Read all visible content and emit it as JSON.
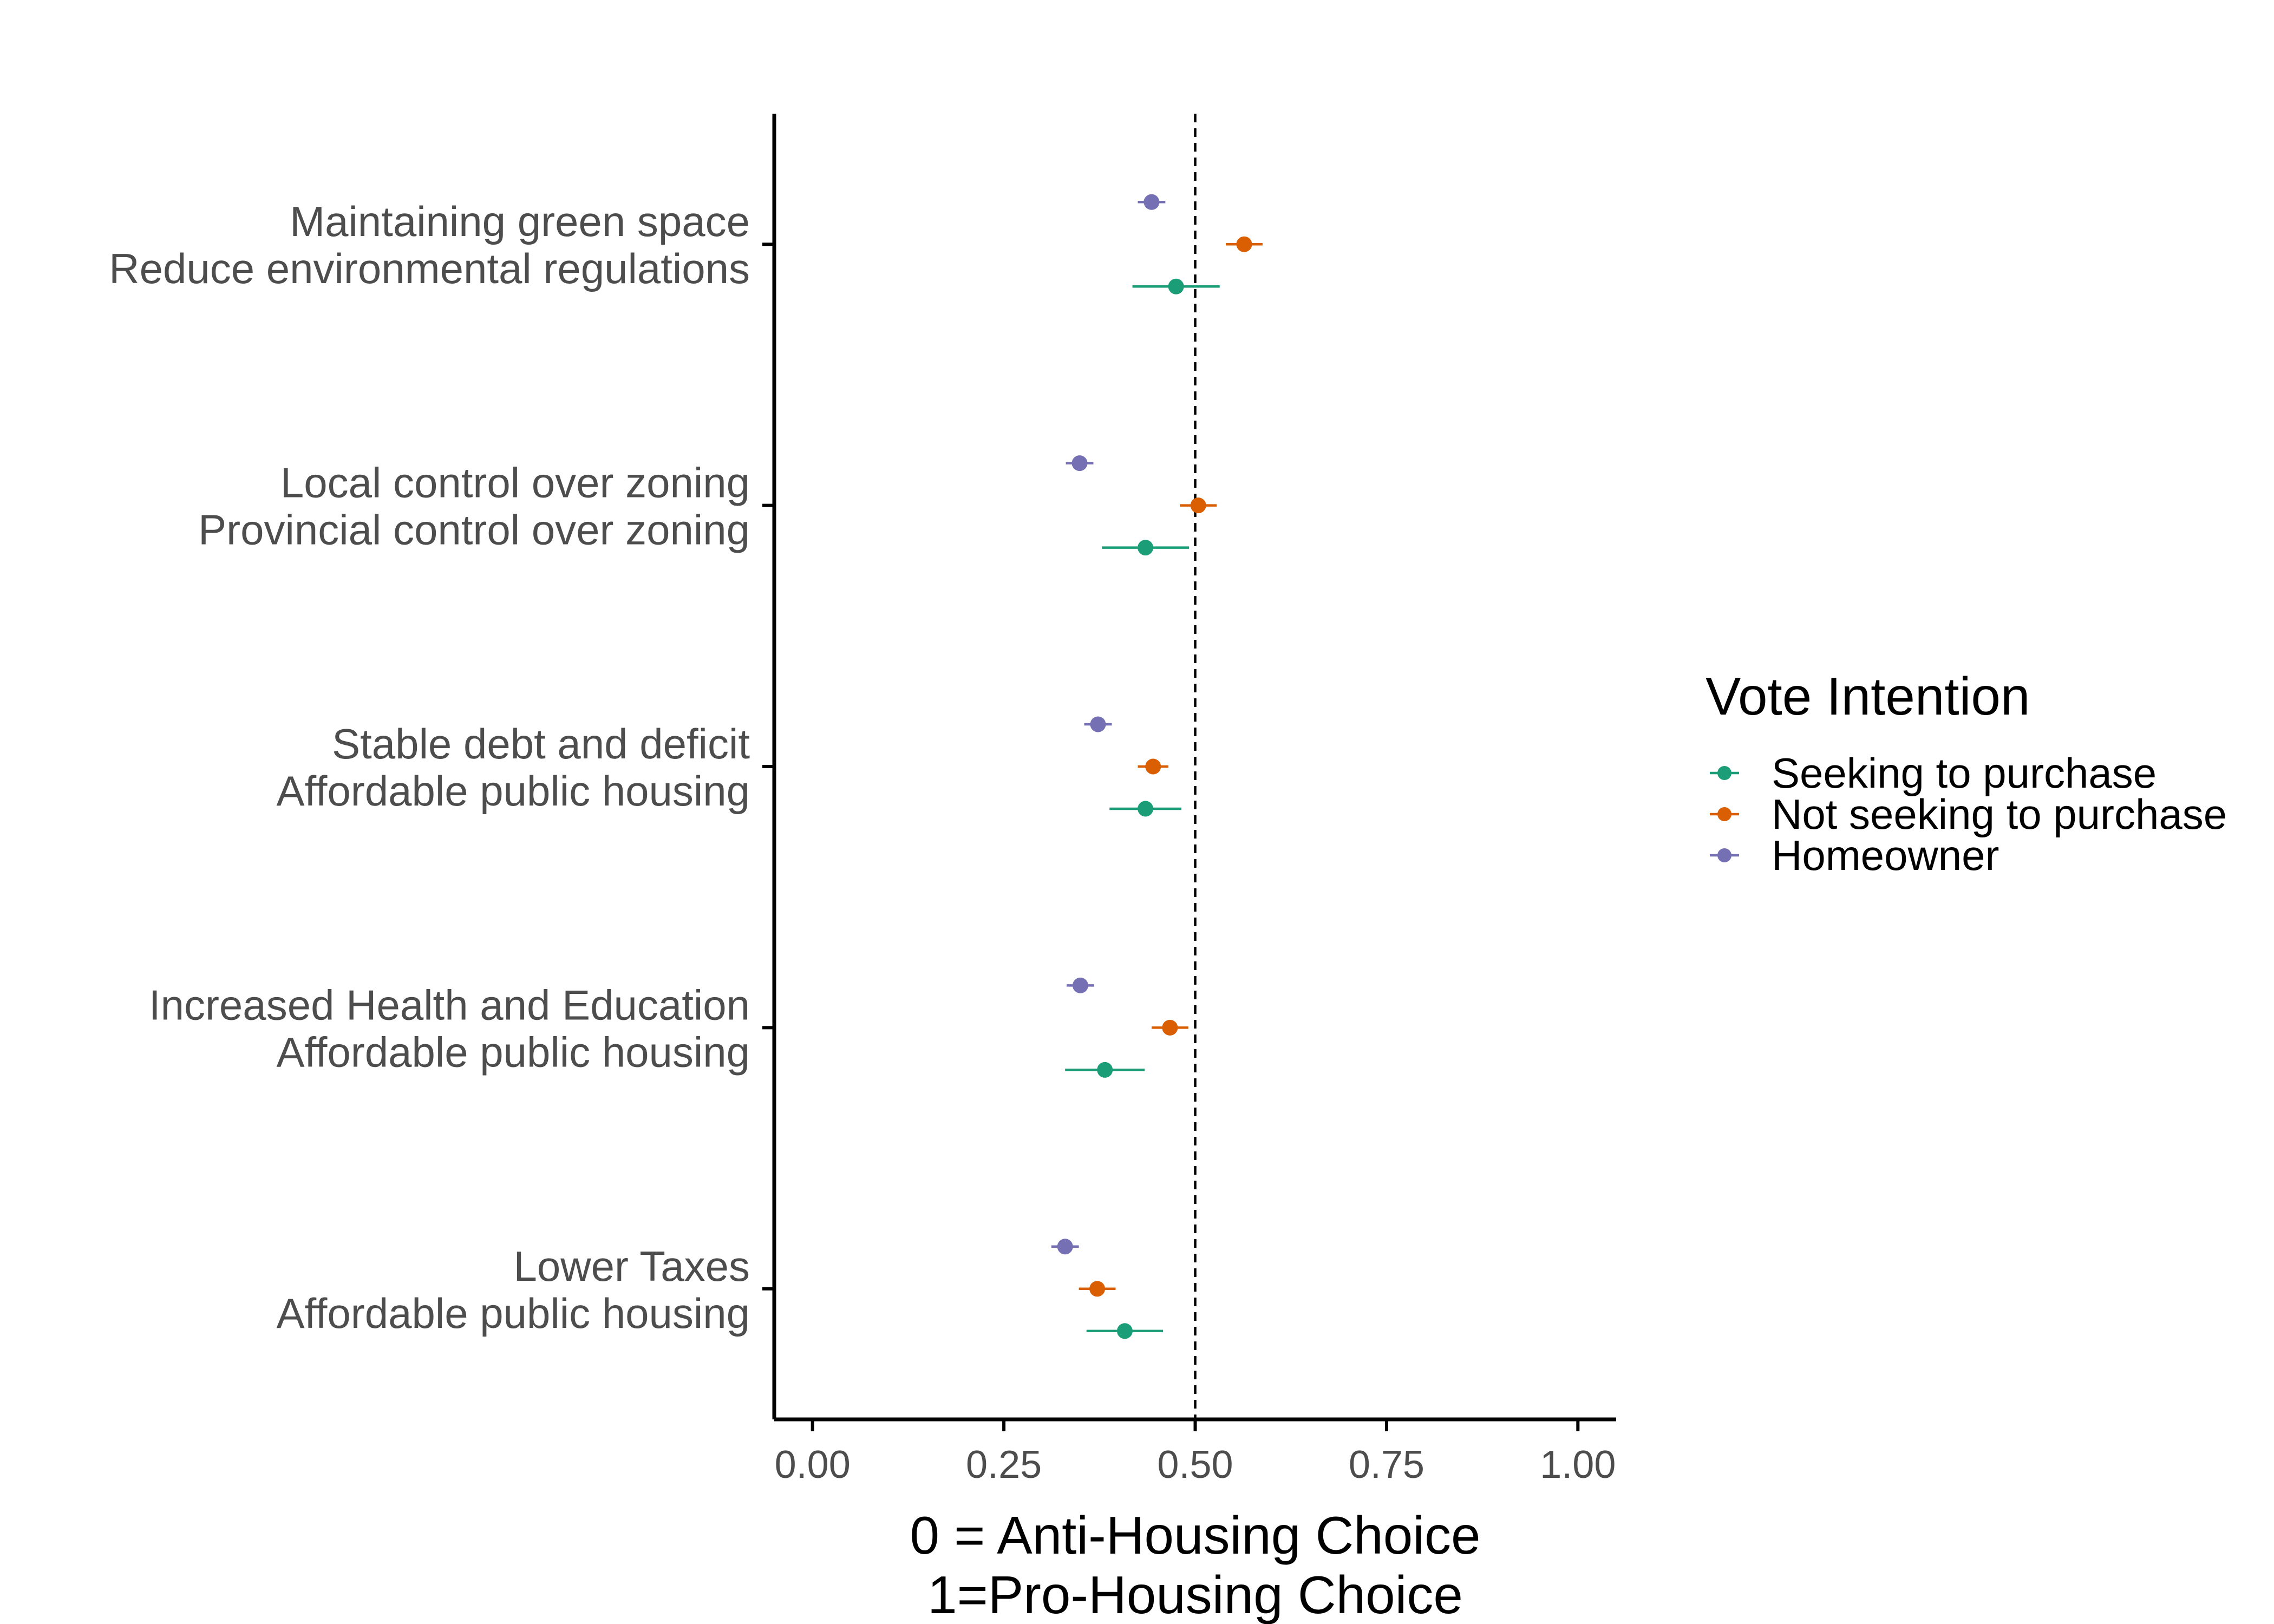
{
  "chart_data": {
    "type": "scatter",
    "orientation": "horizontal",
    "xlabel": [
      "0 = Anti-Housing Choice",
      "1=Pro-Housing Choice"
    ],
    "xlim": [
      -0.05,
      1.05
    ],
    "xticks": [
      0.0,
      0.25,
      0.5,
      0.75,
      1.0
    ],
    "xtick_labels": [
      "0.00",
      "0.25",
      "0.50",
      "0.75",
      "1.00"
    ],
    "reference_line": {
      "x": 0.5,
      "style": "dashed"
    },
    "grid": false,
    "legend": {
      "title": "Vote Intention",
      "position": "right"
    },
    "categories": [
      [
        "Maintaining green space",
        "Reduce environmental regulations"
      ],
      [
        "Local control over zoning",
        "Provincial control over zoning"
      ],
      [
        "Stable debt and deficit",
        "Affordable public housing"
      ],
      [
        "Increased Health and Education",
        "Affordable public housing"
      ],
      [
        "Lower Taxes",
        "Affordable public housing"
      ]
    ],
    "series": [
      {
        "name": "Seeking to purchase",
        "color": "#1b9e77",
        "values": [
          0.475,
          0.435,
          0.435,
          0.382,
          0.408
        ],
        "lower": [
          0.418,
          0.378,
          0.388,
          0.33,
          0.358
        ],
        "upper": [
          0.532,
          0.492,
          0.482,
          0.434,
          0.458
        ]
      },
      {
        "name": "Not seeking to purchase",
        "color": "#d95f02",
        "values": [
          0.564,
          0.504,
          0.445,
          0.467,
          0.372
        ],
        "lower": [
          0.54,
          0.48,
          0.425,
          0.443,
          0.348
        ],
        "upper": [
          0.588,
          0.528,
          0.465,
          0.491,
          0.396
        ]
      },
      {
        "name": "Homeowner",
        "color": "#7570b3",
        "values": [
          0.443,
          0.349,
          0.373,
          0.35,
          0.33
        ],
        "lower": [
          0.425,
          0.331,
          0.355,
          0.332,
          0.312
        ],
        "upper": [
          0.461,
          0.367,
          0.391,
          0.368,
          0.348
        ]
      }
    ]
  }
}
